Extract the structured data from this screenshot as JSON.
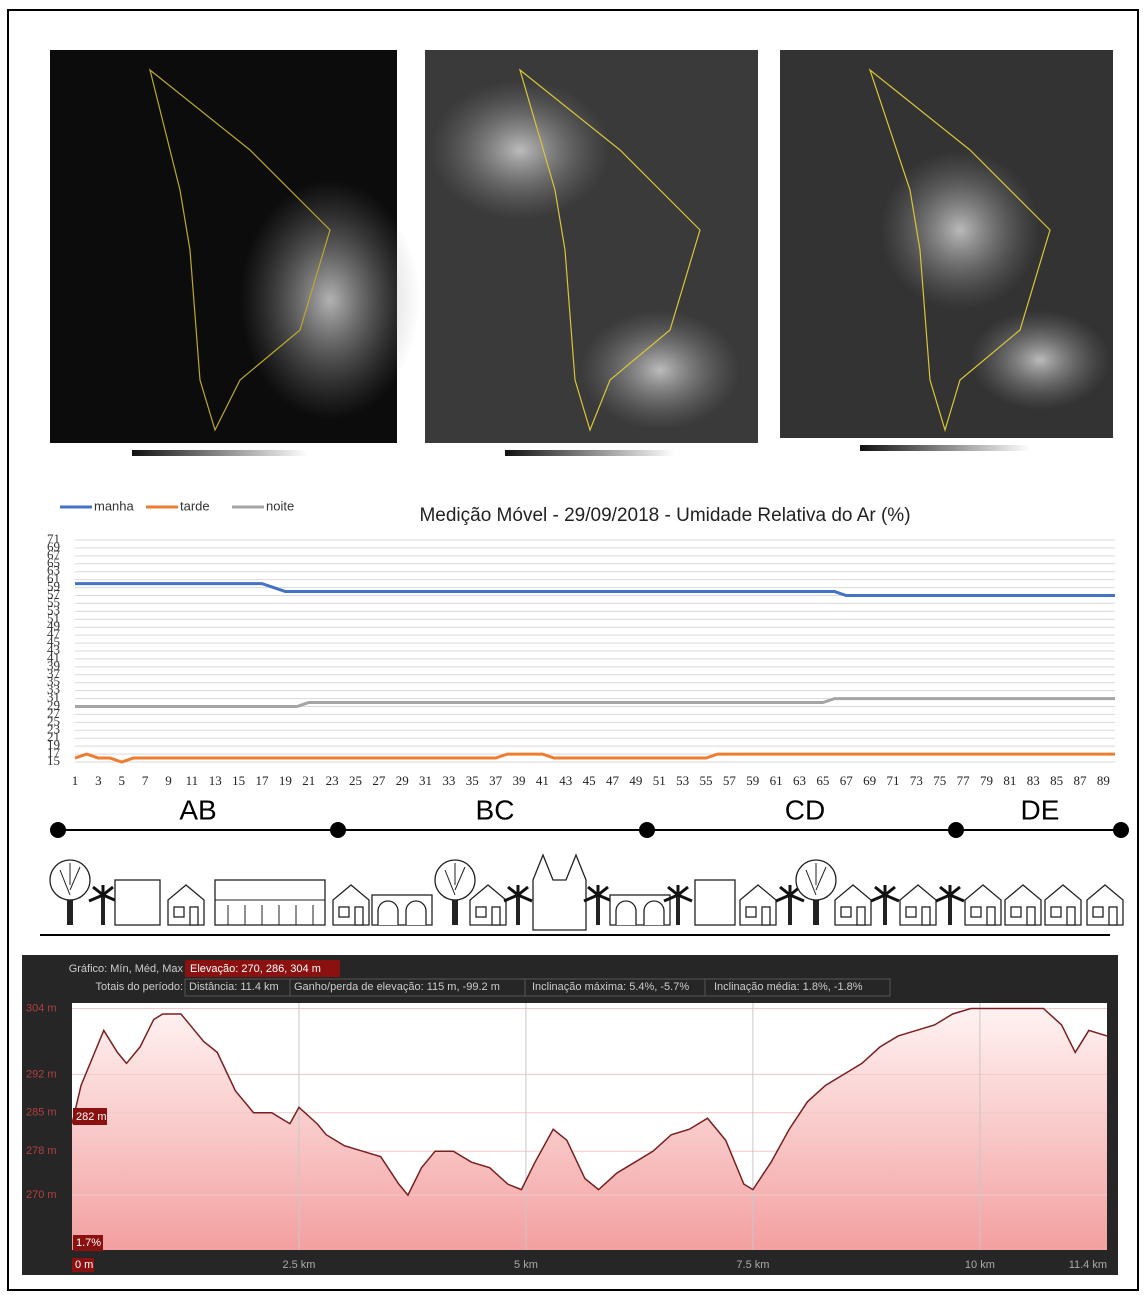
{
  "chart_data": [
    {
      "type": "line",
      "title": "Medição Móvel - 29/09/2018 - Umidade Relativa do Ar (%)",
      "categories": [
        1,
        null,
        3,
        null,
        5,
        null,
        7,
        null,
        9,
        null,
        11,
        null,
        13,
        null,
        15,
        null,
        17,
        null,
        19,
        null,
        21,
        null,
        23,
        null,
        25,
        null,
        27,
        null,
        29,
        null,
        31,
        null,
        33,
        null,
        35,
        null,
        37,
        null,
        39,
        null,
        41,
        null,
        43,
        null,
        45,
        null,
        47,
        null,
        49,
        null,
        51,
        null,
        53,
        null,
        55,
        null,
        57,
        null,
        59,
        null,
        61,
        null,
        63,
        null,
        65,
        null,
        67,
        null,
        69,
        null,
        71,
        null,
        73,
        null,
        75,
        null,
        77,
        null,
        79,
        null,
        81,
        null,
        83,
        null,
        85,
        null,
        87,
        null,
        89,
        null
      ],
      "series": [
        {
          "name": "manha",
          "color": "#4472c4",
          "values": [
            60,
            60,
            60,
            60,
            60,
            60,
            60,
            60,
            60,
            60,
            60,
            60,
            60,
            60,
            60,
            60,
            60,
            59,
            58,
            58,
            58,
            58,
            58,
            58,
            58,
            58,
            58,
            58,
            58,
            58,
            58,
            58,
            58,
            58,
            58,
            58,
            58,
            58,
            58,
            58,
            58,
            58,
            58,
            58,
            58,
            58,
            58,
            58,
            58,
            58,
            58,
            58,
            58,
            58,
            58,
            58,
            58,
            58,
            58,
            58,
            58,
            58,
            58,
            58,
            58,
            58,
            57,
            57,
            57,
            57,
            57,
            57,
            57,
            57,
            57,
            57,
            57,
            57,
            57,
            57,
            57,
            57,
            57,
            57,
            57,
            57,
            57,
            57,
            57,
            57
          ]
        },
        {
          "name": "tarde",
          "color": "#ed7d31",
          "values": [
            16,
            17,
            16,
            16,
            15,
            16,
            16,
            16,
            16,
            16,
            16,
            16,
            16,
            16,
            16,
            16,
            16,
            16,
            16,
            16,
            16,
            16,
            16,
            16,
            16,
            16,
            16,
            16,
            16,
            16,
            16,
            16,
            16,
            16,
            16,
            16,
            16,
            17,
            17,
            17,
            17,
            16,
            16,
            16,
            16,
            16,
            16,
            16,
            16,
            16,
            16,
            16,
            16,
            16,
            16,
            17,
            17,
            17,
            17,
            17,
            17,
            17,
            17,
            17,
            17,
            17,
            17,
            17,
            17,
            17,
            17,
            17,
            17,
            17,
            17,
            17,
            17,
            17,
            17,
            17,
            17,
            17,
            17,
            17,
            17,
            17,
            17,
            17,
            17,
            17
          ]
        },
        {
          "name": "noite",
          "color": "#a5a5a5",
          "values": [
            29,
            29,
            29,
            29,
            29,
            29,
            29,
            29,
            29,
            29,
            29,
            29,
            29,
            29,
            29,
            29,
            29,
            29,
            29,
            29,
            30,
            30,
            30,
            30,
            30,
            30,
            30,
            30,
            30,
            30,
            30,
            30,
            30,
            30,
            30,
            30,
            30,
            30,
            30,
            30,
            30,
            30,
            30,
            30,
            30,
            30,
            30,
            30,
            30,
            30,
            30,
            30,
            30,
            30,
            30,
            30,
            30,
            30,
            30,
            30,
            30,
            30,
            30,
            30,
            30,
            31,
            31,
            31,
            31,
            31,
            31,
            31,
            31,
            31,
            31,
            31,
            31,
            31,
            31,
            31,
            31,
            31,
            31,
            31,
            31,
            31,
            31,
            31,
            31,
            31
          ]
        }
      ],
      "ylim": [
        15,
        71
      ],
      "yticks": [
        15,
        17,
        19,
        21,
        23,
        25,
        27,
        29,
        31,
        33,
        35,
        37,
        39,
        41,
        43,
        45,
        47,
        49,
        51,
        53,
        55,
        57,
        59,
        61,
        63,
        65,
        67,
        69,
        71
      ],
      "grid": true,
      "legend": "top-left"
    },
    {
      "type": "area",
      "header": {
        "chart_label": "Gráfico: Mín, Méd, Max",
        "elevation": "Elevação: 270, 286, 304 m",
        "totals_label": "Totais do período:",
        "distance": "Distância: 11.4 km",
        "gain_loss": "Ganho/perda de elevação: 115 m, -99.2 m",
        "max_slope": "Inclinação máxima: 5.4%, -5.7%",
        "avg_slope": "Inclinação média: 1.8%, -1.8%"
      },
      "annotations": [
        "282 m",
        "1.7%"
      ],
      "x": [
        0,
        0.1,
        0.25,
        0.35,
        0.5,
        0.6,
        0.75,
        0.9,
        1.0,
        1.2,
        1.3,
        1.45,
        1.6,
        1.8,
        2.0,
        2.2,
        2.4,
        2.5,
        2.7,
        2.8,
        3.0,
        3.2,
        3.4,
        3.6,
        3.7,
        3.85,
        4.0,
        4.2,
        4.4,
        4.6,
        4.8,
        4.95,
        5.1,
        5.3,
        5.45,
        5.65,
        5.8,
        6.0,
        6.2,
        6.4,
        6.6,
        6.8,
        7.0,
        7.2,
        7.4,
        7.5,
        7.7,
        7.9,
        8.1,
        8.3,
        8.5,
        8.7,
        8.9,
        9.1,
        9.3,
        9.5,
        9.7,
        9.9,
        10.0,
        10.15,
        10.3,
        10.5,
        10.7,
        10.9,
        11.05,
        11.2,
        11.4
      ],
      "values": [
        283,
        290,
        296,
        300,
        296,
        294,
        297,
        302,
        303,
        303,
        301,
        298,
        296,
        289,
        285,
        285,
        283,
        286,
        283,
        281,
        279,
        278,
        277,
        272,
        270,
        275,
        278,
        278,
        276,
        275,
        272,
        271,
        276,
        282,
        280,
        273,
        271,
        274,
        276,
        278,
        281,
        282,
        284,
        280,
        272,
        271,
        276,
        282,
        287,
        290,
        292,
        294,
        297,
        299,
        300,
        301,
        303,
        304,
        304,
        304,
        304,
        304,
        304,
        301,
        296,
        300,
        299
      ],
      "color": "#7a1f1f",
      "xlim": [
        0,
        11.4
      ],
      "ylim": [
        260,
        305
      ],
      "xticks": [
        {
          "value": 0,
          "label": "0 m"
        },
        {
          "value": 2.5,
          "label": "2.5 km"
        },
        {
          "value": 5,
          "label": "5 km"
        },
        {
          "value": 7.5,
          "label": "7.5 km"
        },
        {
          "value": 10,
          "label": "10 km"
        },
        {
          "value": 11.4,
          "label": "11.4 km"
        }
      ],
      "yticks": [
        {
          "value": 270,
          "label": "270 m"
        },
        {
          "value": 278,
          "label": "278 m"
        },
        {
          "value": 285,
          "label": "285 m"
        },
        {
          "value": 292,
          "label": "292 m"
        },
        {
          "value": 304,
          "label": "304 m"
        }
      ],
      "grid": true
    }
  ],
  "route": {
    "segments": [
      "AB",
      "BC",
      "CD",
      "DE"
    ]
  }
}
